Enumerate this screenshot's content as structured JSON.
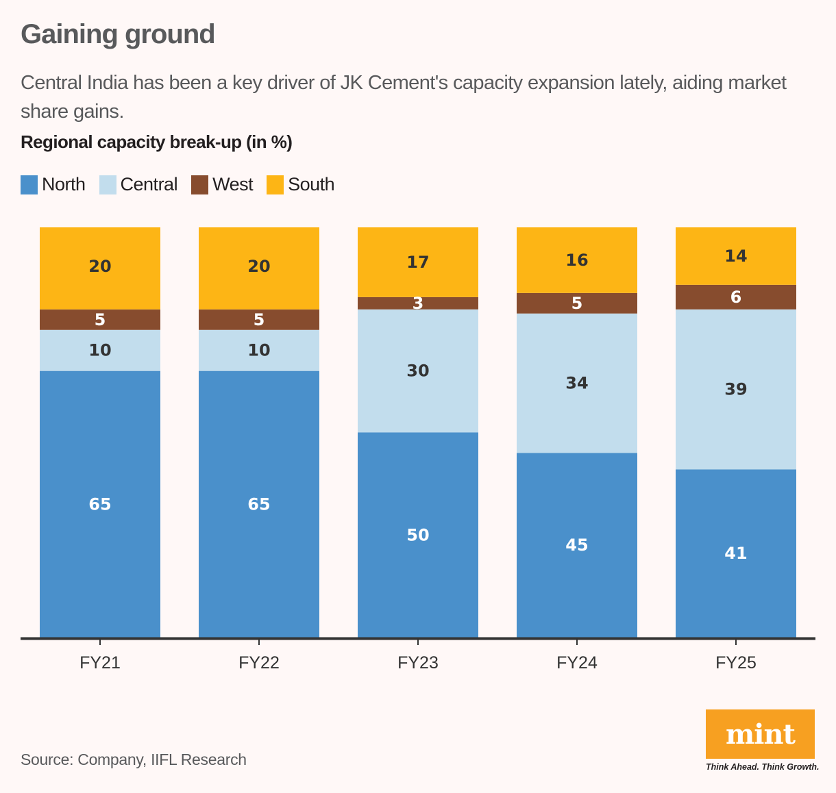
{
  "header": {
    "title": "Gaining ground",
    "subtitle": "Central India has been a key driver of JK Cement's capacity expansion lately, aiding market share gains."
  },
  "footer": {
    "source": "Source: Company, IIFL Research",
    "logo_text": "mint",
    "tagline": "Think Ahead. Think Growth."
  },
  "chart_data": {
    "type": "bar",
    "stacked": true,
    "title": "Regional capacity break-up (in %)",
    "xlabel": "",
    "ylabel": "",
    "ylim": [
      0,
      100
    ],
    "grid": false,
    "legend_position": "top-left",
    "categories": [
      "FY21",
      "FY22",
      "FY23",
      "FY24",
      "FY25"
    ],
    "series": [
      {
        "name": "North",
        "color": "#4a90cb",
        "label_color": "#ffffff",
        "values": [
          65,
          65,
          50,
          45,
          41
        ]
      },
      {
        "name": "Central",
        "color": "#c2dded",
        "label_color": "#333333",
        "values": [
          10,
          10,
          30,
          34,
          39
        ]
      },
      {
        "name": "West",
        "color": "#874c2e",
        "label_color": "#ffffff",
        "values": [
          5,
          5,
          3,
          5,
          6
        ]
      },
      {
        "name": "South",
        "color": "#fdb515",
        "label_color": "#333333",
        "values": [
          20,
          20,
          17,
          16,
          14
        ]
      }
    ]
  }
}
